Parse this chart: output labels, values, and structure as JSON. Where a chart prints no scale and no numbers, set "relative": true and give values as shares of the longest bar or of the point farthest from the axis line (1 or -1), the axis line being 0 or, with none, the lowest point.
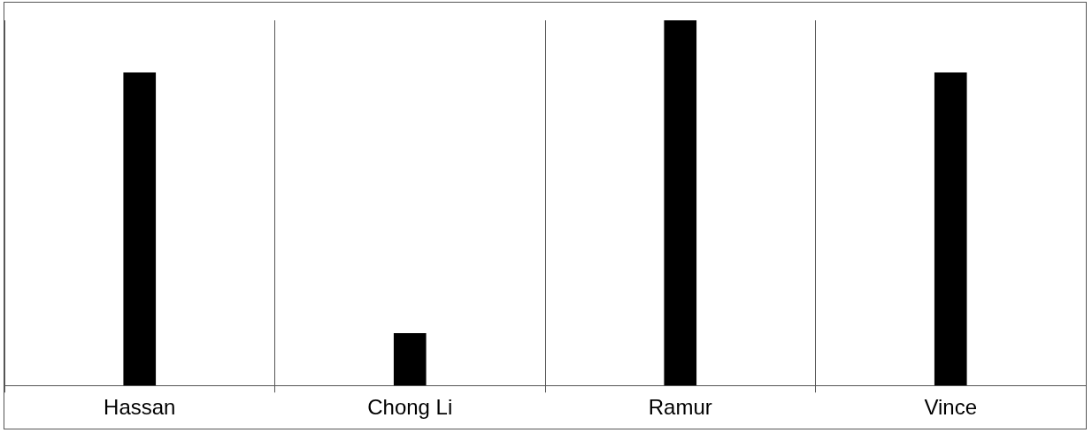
{
  "chart_data": {
    "type": "bar",
    "categories": [
      "Hassan",
      "Chong Li",
      "Ramur",
      "Vince"
    ],
    "values": [
      0.857,
      0.143,
      1,
      0.857
    ],
    "color": "#000000",
    "relative": true,
    "grid": "x"
  }
}
